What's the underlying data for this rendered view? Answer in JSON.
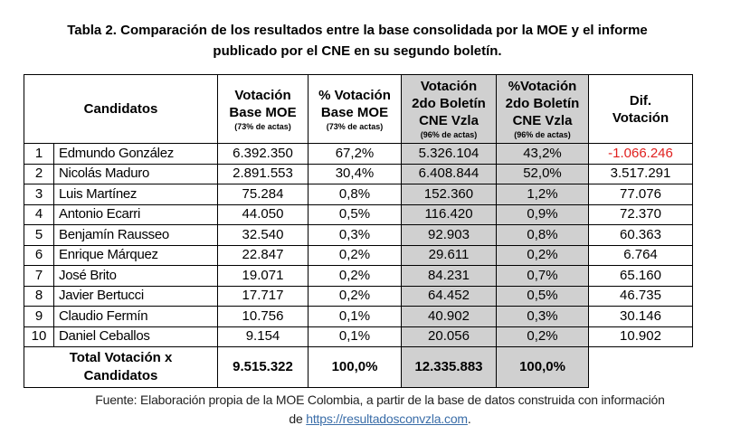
{
  "title": {
    "line1": "Tabla 2. Comparación de los resultados entre la base consolidada por la MOE y el informe",
    "line2": "publicado por el CNE en su segundo boletín."
  },
  "headers": {
    "candidatos": "Candidatos",
    "votacion_moe": [
      "Votación",
      "Base MOE"
    ],
    "votacion_moe_note": "(73% de actas)",
    "pct_moe": [
      "% Votación",
      "Base MOE"
    ],
    "pct_moe_note": "(73% de actas)",
    "votacion_cne": [
      "Votación",
      "2do Boletín",
      "CNE Vzla"
    ],
    "votacion_cne_note": "(96% de actas)",
    "pct_cne": [
      "%Votación",
      "2do Boletín",
      "CNE Vzla"
    ],
    "pct_cne_note": "(96% de actas)",
    "dif": [
      "Dif.",
      "Votación"
    ]
  },
  "rows": [
    {
      "n": "1",
      "name": "Edmundo González",
      "moe": "6.392.350",
      "pct_moe": "67,2%",
      "cne": "5.326.104",
      "pct_cne": "43,2%",
      "dif": "-1.066.246"
    },
    {
      "n": "2",
      "name": "Nicolás Maduro",
      "moe": "2.891.553",
      "pct_moe": "30,4%",
      "cne": "6.408.844",
      "pct_cne": "52,0%",
      "dif": "3.517.291"
    },
    {
      "n": "3",
      "name": "Luis Martínez",
      "moe": "75.284",
      "pct_moe": "0,8%",
      "cne": "152.360",
      "pct_cne": "1,2%",
      "dif": "77.076"
    },
    {
      "n": "4",
      "name": "Antonio Ecarri",
      "moe": "44.050",
      "pct_moe": "0,5%",
      "cne": "116.420",
      "pct_cne": "0,9%",
      "dif": "72.370"
    },
    {
      "n": "5",
      "name": "Benjamín Rausseo",
      "moe": "32.540",
      "pct_moe": "0,3%",
      "cne": "92.903",
      "pct_cne": "0,8%",
      "dif": "60.363"
    },
    {
      "n": "6",
      "name": "Enrique Márquez",
      "moe": "22.847",
      "pct_moe": "0,2%",
      "cne": "29.611",
      "pct_cne": "0,2%",
      "dif": "6.764"
    },
    {
      "n": "7",
      "name": "José Brito",
      "moe": "19.071",
      "pct_moe": "0,2%",
      "cne": "84.231",
      "pct_cne": "0,7%",
      "dif": "65.160"
    },
    {
      "n": "8",
      "name": "Javier Bertucci",
      "moe": "17.717",
      "pct_moe": "0,2%",
      "cne": "64.452",
      "pct_cne": "0,5%",
      "dif": "46.735"
    },
    {
      "n": "9",
      "name": "Claudio Fermín",
      "moe": "10.756",
      "pct_moe": "0,1%",
      "cne": "40.902",
      "pct_cne": "0,3%",
      "dif": "30.146"
    },
    {
      "n": "10",
      "name": "Daniel Ceballos",
      "moe": "9.154",
      "pct_moe": "0,1%",
      "cne": "20.056",
      "pct_cne": "0,2%",
      "dif": "10.902"
    }
  ],
  "total": {
    "label": [
      "Total Votación x",
      "Candidatos"
    ],
    "moe": "9.515.322",
    "pct_moe": "100,0%",
    "cne": "12.335.883",
    "pct_cne": "100,0%"
  },
  "source": {
    "line1": "Fuente: Elaboración propia de la MOE Colombia, a partir de la base de datos construida con información",
    "prefix": "de ",
    "link": "https://resultadosconvzla.com",
    "suffix": "."
  },
  "colors": {
    "highlight_gray": "#d0d0d0",
    "negative": "#e0201f",
    "link": "#3a6da8"
  }
}
